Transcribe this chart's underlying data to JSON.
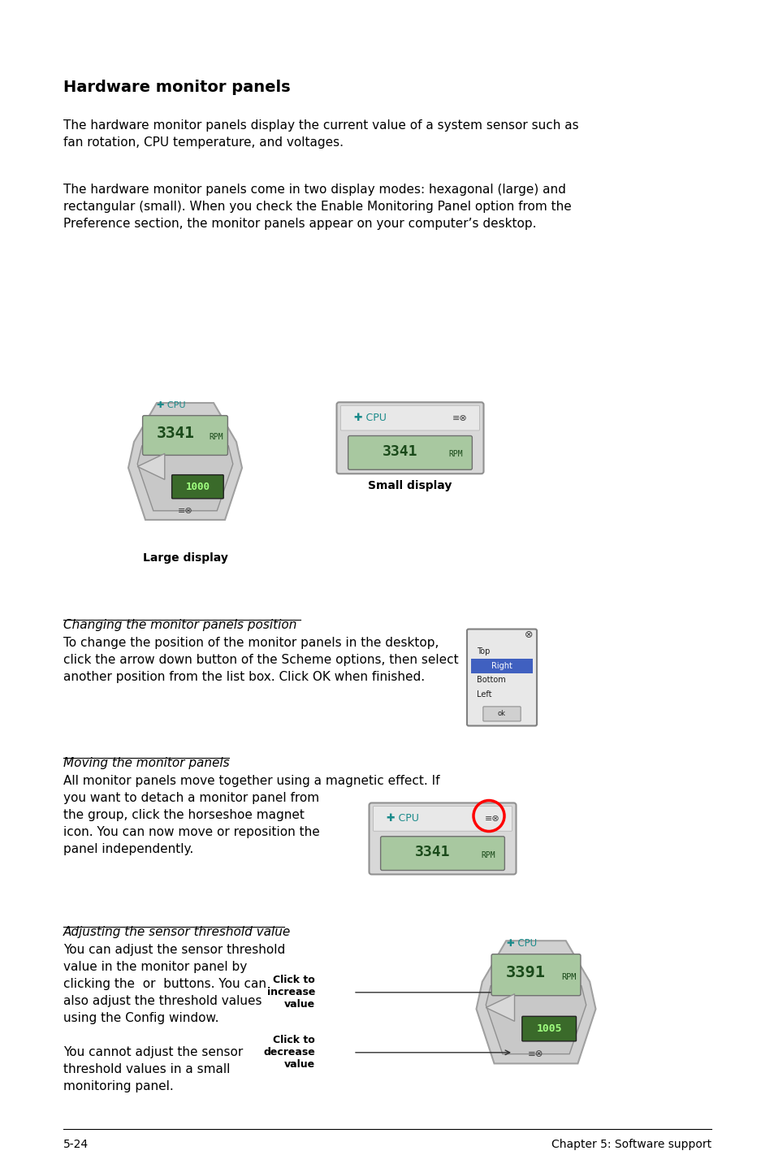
{
  "title": "Hardware monitor panels",
  "para1": "The hardware monitor panels display the current value of a system sensor such as\nfan rotation, CPU temperature, and voltages.",
  "para2": "The hardware monitor panels come in two display modes: hexagonal (large) and\nrectangular (small). When you check the Enable Monitoring Panel option from the\nPreference section, the monitor panels appear on your computer’s desktop.",
  "large_display_label": "Large display",
  "small_display_label": "Small display",
  "section1_title": "Changing the monitor panels position",
  "section1_text": "To change the position of the monitor panels in the desktop,\nclick the arrow down button of the Scheme options, then select\nanother position from the list box. Click OK when finished.",
  "section2_title": "Moving the monitor panels",
  "section2_text": "All monitor panels move together using a magnetic effect. If\nyou want to detach a monitor panel from\nthe group, click the horseshoe magnet\nicon. You can now move or reposition the\npanel independently.",
  "section3_title": "Adjusting the sensor threshold value",
  "section3_text1": "You can adjust the sensor threshold\nvalue in the monitor panel by\nclicking the  or  buttons. You can\nalso adjust the threshold values\nusing the Config window.",
  "section3_text2": "You cannot adjust the sensor\nthreshold values in a small\nmonitoring panel.",
  "click_increase": "Click to\nincrease\nvalue",
  "click_decrease": "Click to\ndecrease\nvalue",
  "footer_left": "5-24",
  "footer_right": "Chapter 5: Software support",
  "bg_color": "#ffffff",
  "text_color": "#000000"
}
